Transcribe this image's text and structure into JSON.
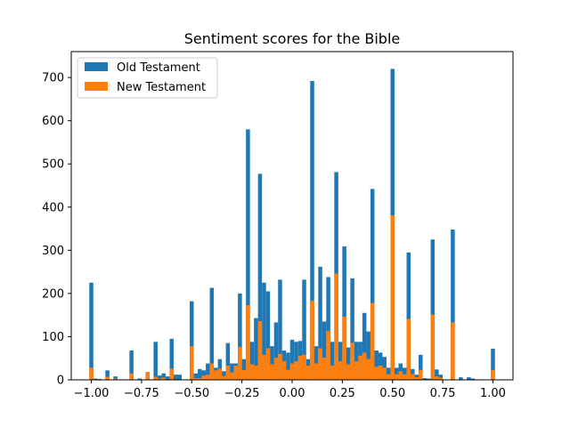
{
  "chart_data": {
    "type": "bar",
    "title": "Sentiment scores for the Bible",
    "xlabel": "",
    "ylabel": "",
    "xlim": [
      -1.1,
      1.1
    ],
    "ylim": [
      0,
      760
    ],
    "bin_width": 0.02,
    "x_ticks": [
      -1.0,
      -0.75,
      -0.5,
      -0.25,
      0.0,
      0.25,
      0.5,
      0.75,
      1.0
    ],
    "x_tick_labels": [
      "−1.00",
      "−0.75",
      "−0.50",
      "−0.25",
      "0.00",
      "0.25",
      "0.50",
      "0.75",
      "1.00"
    ],
    "y_ticks": [
      0,
      100,
      200,
      300,
      400,
      500,
      600,
      700
    ],
    "y_tick_labels": [
      "0",
      "100",
      "200",
      "300",
      "400",
      "500",
      "600",
      "700"
    ],
    "legend_position": "top-left",
    "grid": false,
    "colors": {
      "old": "#1f77b4",
      "new": "#ff7f0e"
    },
    "series": [
      {
        "name": "Old Testament",
        "bins": [
          [
            -1.0,
            225
          ],
          [
            -0.98,
            3
          ],
          [
            -0.96,
            2
          ],
          [
            -0.92,
            22
          ],
          [
            -0.88,
            8
          ],
          [
            -0.8,
            68
          ],
          [
            -0.76,
            3
          ],
          [
            -0.72,
            18
          ],
          [
            -0.68,
            88
          ],
          [
            -0.66,
            10
          ],
          [
            -0.64,
            15
          ],
          [
            -0.62,
            8
          ],
          [
            -0.6,
            95
          ],
          [
            -0.58,
            12
          ],
          [
            -0.56,
            12
          ],
          [
            -0.5,
            182
          ],
          [
            -0.48,
            15
          ],
          [
            -0.46,
            25
          ],
          [
            -0.44,
            22
          ],
          [
            -0.42,
            38
          ],
          [
            -0.4,
            213
          ],
          [
            -0.38,
            28
          ],
          [
            -0.36,
            48
          ],
          [
            -0.34,
            20
          ],
          [
            -0.32,
            85
          ],
          [
            -0.3,
            38
          ],
          [
            -0.28,
            38
          ],
          [
            -0.26,
            200
          ],
          [
            -0.24,
            48
          ],
          [
            -0.22,
            580
          ],
          [
            -0.2,
            88
          ],
          [
            -0.18,
            143
          ],
          [
            -0.16,
            477
          ],
          [
            -0.14,
            225
          ],
          [
            -0.12,
            205
          ],
          [
            -0.1,
            78
          ],
          [
            -0.08,
            133
          ],
          [
            -0.06,
            232
          ],
          [
            -0.04,
            68
          ],
          [
            -0.02,
            63
          ],
          [
            0.0,
            93
          ],
          [
            0.02,
            88
          ],
          [
            0.04,
            90
          ],
          [
            0.06,
            232
          ],
          [
            0.08,
            48
          ],
          [
            0.1,
            692
          ],
          [
            0.12,
            78
          ],
          [
            0.14,
            262
          ],
          [
            0.16,
            135
          ],
          [
            0.18,
            238
          ],
          [
            0.2,
            88
          ],
          [
            0.22,
            481
          ],
          [
            0.24,
            88
          ],
          [
            0.26,
            309
          ],
          [
            0.28,
            75
          ],
          [
            0.3,
            235
          ],
          [
            0.32,
            88
          ],
          [
            0.34,
            88
          ],
          [
            0.36,
            155
          ],
          [
            0.38,
            112
          ],
          [
            0.4,
            442
          ],
          [
            0.42,
            68
          ],
          [
            0.44,
            63
          ],
          [
            0.46,
            53
          ],
          [
            0.48,
            28
          ],
          [
            0.5,
            720
          ],
          [
            0.52,
            28
          ],
          [
            0.54,
            38
          ],
          [
            0.56,
            28
          ],
          [
            0.58,
            295
          ],
          [
            0.6,
            25
          ],
          [
            0.62,
            12
          ],
          [
            0.64,
            58
          ],
          [
            0.66,
            4
          ],
          [
            0.68,
            3
          ],
          [
            0.7,
            325
          ],
          [
            0.72,
            24
          ],
          [
            0.74,
            12
          ],
          [
            0.8,
            348
          ],
          [
            0.84,
            6
          ],
          [
            0.88,
            6
          ],
          [
            0.9,
            3
          ],
          [
            1.0,
            72
          ]
        ]
      },
      {
        "name": "New Testament",
        "bins": [
          [
            -1.0,
            28
          ],
          [
            -0.92,
            7
          ],
          [
            -0.88,
            3
          ],
          [
            -0.8,
            15
          ],
          [
            -0.72,
            18
          ],
          [
            -0.68,
            7
          ],
          [
            -0.66,
            3
          ],
          [
            -0.64,
            5
          ],
          [
            -0.6,
            26
          ],
          [
            -0.5,
            78
          ],
          [
            -0.48,
            4
          ],
          [
            -0.46,
            4
          ],
          [
            -0.44,
            10
          ],
          [
            -0.42,
            12
          ],
          [
            -0.4,
            38
          ],
          [
            -0.38,
            22
          ],
          [
            -0.36,
            26
          ],
          [
            -0.34,
            9
          ],
          [
            -0.32,
            33
          ],
          [
            -0.3,
            17
          ],
          [
            -0.28,
            33
          ],
          [
            -0.26,
            76
          ],
          [
            -0.24,
            23
          ],
          [
            -0.22,
            173
          ],
          [
            -0.2,
            36
          ],
          [
            -0.18,
            33
          ],
          [
            -0.16,
            136
          ],
          [
            -0.14,
            58
          ],
          [
            -0.12,
            73
          ],
          [
            -0.1,
            36
          ],
          [
            -0.08,
            51
          ],
          [
            -0.06,
            60
          ],
          [
            -0.04,
            43
          ],
          [
            -0.02,
            23
          ],
          [
            0.0,
            38
          ],
          [
            0.02,
            43
          ],
          [
            0.04,
            56
          ],
          [
            0.06,
            58
          ],
          [
            0.08,
            33
          ],
          [
            0.1,
            183
          ],
          [
            0.12,
            38
          ],
          [
            0.14,
            73
          ],
          [
            0.16,
            51
          ],
          [
            0.18,
            113
          ],
          [
            0.2,
            33
          ],
          [
            0.22,
            246
          ],
          [
            0.24,
            43
          ],
          [
            0.26,
            146
          ],
          [
            0.28,
            36
          ],
          [
            0.3,
            86
          ],
          [
            0.32,
            43
          ],
          [
            0.34,
            56
          ],
          [
            0.36,
            63
          ],
          [
            0.38,
            48
          ],
          [
            0.4,
            178
          ],
          [
            0.42,
            30
          ],
          [
            0.44,
            33
          ],
          [
            0.46,
            28
          ],
          [
            0.48,
            13
          ],
          [
            0.5,
            381
          ],
          [
            0.52,
            13
          ],
          [
            0.54,
            20
          ],
          [
            0.56,
            13
          ],
          [
            0.58,
            141
          ],
          [
            0.6,
            13
          ],
          [
            0.62,
            6
          ],
          [
            0.64,
            23
          ],
          [
            0.7,
            151
          ],
          [
            0.72,
            8
          ],
          [
            0.74,
            5
          ],
          [
            0.8,
            133
          ],
          [
            1.0,
            23
          ]
        ]
      }
    ]
  }
}
